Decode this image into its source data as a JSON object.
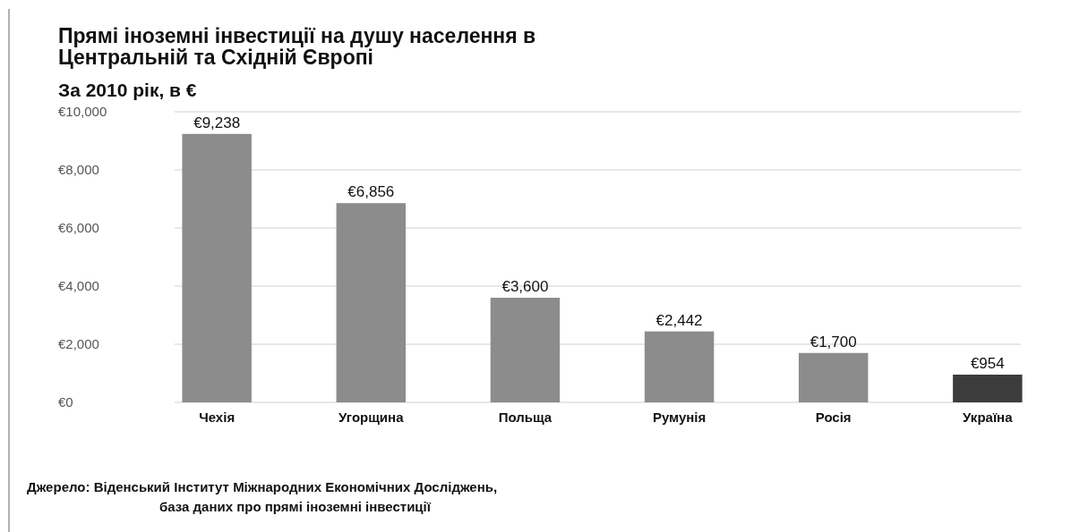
{
  "chart_data": {
    "type": "bar",
    "title": "Прямі іноземні інвестиції на душу населення в Центральній та Східній Європі",
    "subtitle": "За 2010 рік, в €",
    "categories": [
      "Чехія",
      "Угорщина",
      "Польща",
      "Румунія",
      "Росія",
      "Україна"
    ],
    "values": [
      9238,
      6856,
      3600,
      2442,
      1700,
      954
    ],
    "colors": [
      "#8c8c8c",
      "#8c8c8c",
      "#8c8c8c",
      "#8c8c8c",
      "#8c8c8c",
      "#3c3c3c"
    ],
    "value_labels": [
      "€9,238",
      "€6,856",
      "€3,600",
      "€2,442",
      "€1,700",
      "€954"
    ],
    "ylim": [
      0,
      10000
    ],
    "yticks": [
      {
        "value": 0,
        "label": "€0"
      },
      {
        "value": 2000,
        "label": "€2,000"
      },
      {
        "value": 4000,
        "label": "€4,000"
      },
      {
        "value": 6000,
        "label": "€6,000"
      },
      {
        "value": 8000,
        "label": "€8,000"
      },
      {
        "value": 10000,
        "label": "€10,000"
      }
    ],
    "grid": "y",
    "annotations": [
      "Джерело: Віденський Інститут Міжнародних Економічних Досліджень,",
      "база даних про прямі іноземні інвестиції"
    ]
  }
}
